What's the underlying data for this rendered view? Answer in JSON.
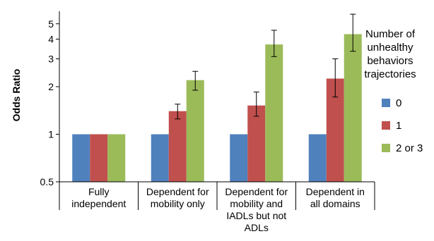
{
  "chart_data": {
    "type": "bar",
    "ylabel": "Odds Ratio",
    "yscale": "log",
    "ylim": [
      0.5,
      6
    ],
    "yticks": [
      {
        "value": 0.5,
        "label": "0.5"
      },
      {
        "value": 1,
        "label": "1"
      },
      {
        "value": 2,
        "label": "2"
      },
      {
        "value": 3,
        "label": "3"
      },
      {
        "value": 4,
        "label": "4"
      },
      {
        "value": 5,
        "label": "5"
      }
    ],
    "categories": [
      {
        "lines": [
          "Fully",
          "independent"
        ]
      },
      {
        "lines": [
          "Dependent for",
          "mobility only"
        ]
      },
      {
        "lines": [
          "Dependent for",
          "mobility and",
          "IADLs but not",
          "ADLs"
        ]
      },
      {
        "lines": [
          "Dependent in",
          "all domains"
        ]
      }
    ],
    "legend": {
      "title_lines": [
        "Number of",
        "unhealthy",
        "behaviors",
        "trajectories"
      ],
      "position": "right"
    },
    "series": [
      {
        "name": "0",
        "color": "#4f81bd",
        "values": [
          1,
          1,
          1,
          1
        ],
        "err_low": [
          null,
          null,
          null,
          null
        ],
        "err_high": [
          null,
          null,
          null,
          null
        ]
      },
      {
        "name": "1",
        "color": "#c0504d",
        "values": [
          1,
          1.4,
          1.52,
          2.25
        ],
        "err_low": [
          null,
          1.25,
          1.3,
          1.72
        ],
        "err_high": [
          null,
          1.55,
          1.85,
          3.0
        ]
      },
      {
        "name": "2 or 3",
        "color": "#9bbb59",
        "values": [
          1,
          2.2,
          3.7,
          4.3
        ],
        "err_low": [
          null,
          1.9,
          3.1,
          3.35
        ],
        "err_high": [
          null,
          2.5,
          4.55,
          5.75
        ]
      }
    ]
  }
}
